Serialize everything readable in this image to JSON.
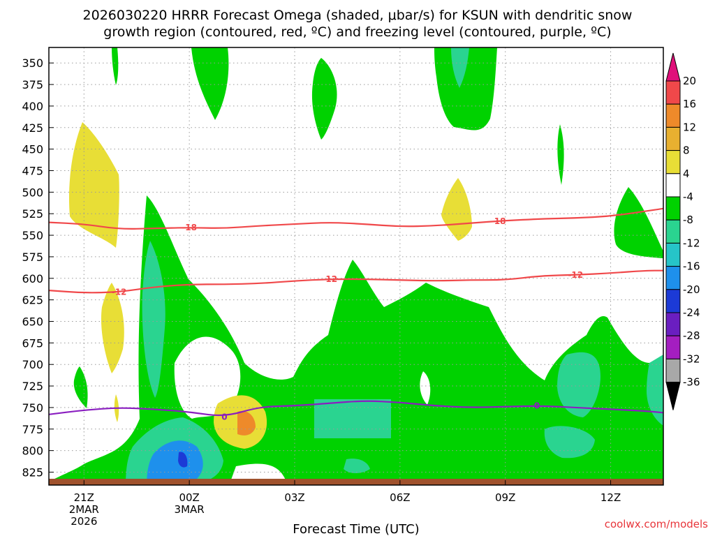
{
  "chart_data": {
    "type": "heatmap",
    "title_lines": [
      "2026030220 HRRR Forecast Omega (shaded, μbar/s) for KSUN with dendritic snow",
      "growth region (contoured, red, ºC) and freezing level (contoured, purple, ºC)"
    ],
    "xlabel": "Forecast Time (UTC)",
    "credit": "coolwx.com/models",
    "x_range_hours": [
      -1.0,
      16.5
    ],
    "y_range_hpa": [
      332,
      840
    ],
    "y_ticks": [
      350,
      375,
      400,
      425,
      450,
      475,
      500,
      525,
      550,
      575,
      600,
      625,
      650,
      675,
      700,
      725,
      750,
      775,
      800,
      825
    ],
    "x_ticks": [
      {
        "hour": 0,
        "lines": [
          "21Z",
          "2MAR",
          "2026"
        ]
      },
      {
        "hour": 3,
        "lines": [
          "00Z",
          "3MAR"
        ]
      },
      {
        "hour": 6,
        "lines": [
          "03Z"
        ]
      },
      {
        "hour": 9,
        "lines": [
          "06Z"
        ]
      },
      {
        "hour": 12,
        "lines": [
          "09Z"
        ]
      },
      {
        "hour": 15,
        "lines": [
          "12Z"
        ]
      }
    ],
    "colorbar": {
      "levels": [
        20,
        16,
        12,
        8,
        4,
        -4,
        -8,
        -12,
        -16,
        -20,
        -24,
        -28,
        -32,
        -36
      ],
      "colors": {
        "above_20": "#e0107a",
        "16_20": "#f0484a",
        "12_16": "#ee8a2a",
        "8_12": "#e8b030",
        "4_8": "#e8de36",
        "-4_4": "#ffffff",
        "-8_-4": "#00d200",
        "-12_-8": "#2ad490",
        "-16_-12": "#26c4c8",
        "-20_-16": "#1e90ec",
        "-24_-20": "#1c3ad6",
        "-28_-24": "#6a1ec0",
        "-32_-28": "#a41ec0",
        "-36_-32": "#a8a8a8",
        "below_-36": "#000000"
      }
    },
    "contour_labels": {
      "dgz_upper": "-18",
      "dgz_lower": "-12",
      "freezing": "0"
    },
    "series": [
      {
        "name": "dgz_upper_-18C",
        "color": "#f0484a",
        "x": [
          -1,
          0,
          1,
          2,
          3,
          4,
          5,
          6,
          7,
          8,
          9,
          10,
          11,
          12,
          13,
          14,
          15,
          16,
          16.5
        ],
        "y": [
          535,
          537,
          543,
          542,
          541,
          542,
          539,
          537,
          535,
          537,
          540,
          539,
          536,
          533,
          531,
          530,
          528,
          522,
          519
        ]
      },
      {
        "name": "dgz_lower_-12C",
        "color": "#f0484a",
        "x": [
          -1,
          0,
          1,
          2,
          3,
          4,
          5,
          6,
          7,
          8,
          9,
          10,
          11,
          12,
          13,
          14,
          15,
          16,
          16.5
        ],
        "y": [
          614,
          617,
          616,
          610,
          607,
          607,
          606,
          603,
          601,
          601,
          602,
          603,
          602,
          602,
          597,
          596,
          594,
          591,
          591
        ]
      },
      {
        "name": "freezing_level_0C",
        "color": "#8a1ec0",
        "x": [
          -1,
          0,
          1,
          2,
          3,
          4,
          5,
          6,
          7,
          8,
          9,
          10,
          11,
          12,
          13,
          14,
          15,
          16,
          16.5
        ],
        "y": [
          758,
          753,
          750,
          752,
          755,
          761,
          749,
          748,
          745,
          742,
          744,
          748,
          750,
          749,
          748,
          750,
          752,
          754,
          756
        ]
      }
    ]
  }
}
